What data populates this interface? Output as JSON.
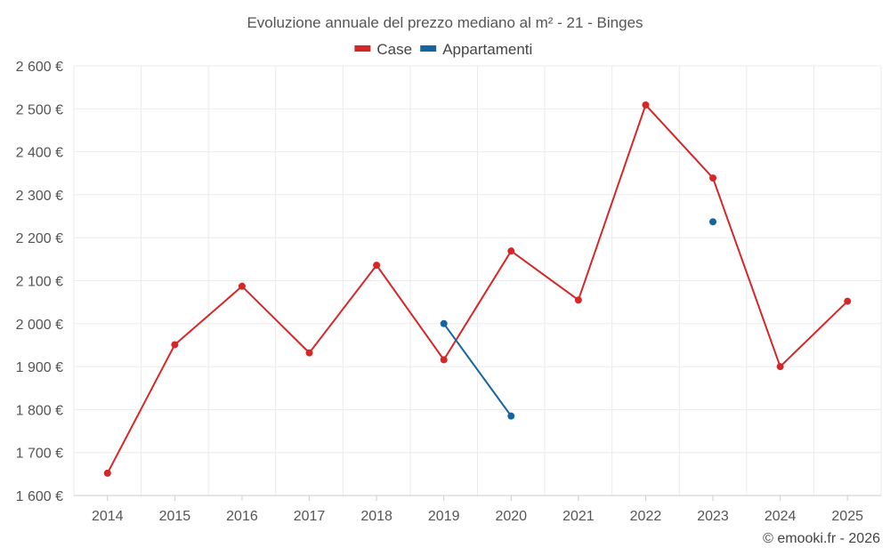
{
  "chart_data": {
    "type": "line",
    "title": "Evoluzione annuale del prezzo mediano al m² - 21 - Binges",
    "categories": [
      "2014",
      "2015",
      "2016",
      "2017",
      "2018",
      "2019",
      "2020",
      "2021",
      "2022",
      "2023",
      "2024",
      "2025"
    ],
    "series": [
      {
        "name": "Case",
        "color": "#d62728",
        "values": [
          1652,
          1951,
          2087,
          1932,
          2136,
          1916,
          2169,
          2055,
          2509,
          2339,
          1900,
          2052
        ]
      },
      {
        "name": "Appartamenti",
        "color": "#1565a0",
        "values": [
          null,
          null,
          null,
          null,
          null,
          2000,
          1785,
          null,
          null,
          2237,
          null,
          null
        ]
      }
    ],
    "yticks": [
      1600,
      1700,
      1800,
      1900,
      2000,
      2100,
      2200,
      2300,
      2400,
      2500,
      2600
    ],
    "ytick_labels": [
      "1 600 €",
      "1 700 €",
      "1 800 €",
      "1 900 €",
      "2 000 €",
      "2 100 €",
      "2 200 €",
      "2 300 €",
      "2 400 €",
      "2 500 €",
      "2 600 €"
    ],
    "ylim": [
      1600,
      2600
    ],
    "xlabel": "",
    "ylabel": "",
    "legend_position": "top-center",
    "grid": true
  },
  "credit": "© emooki.fr - 2026"
}
